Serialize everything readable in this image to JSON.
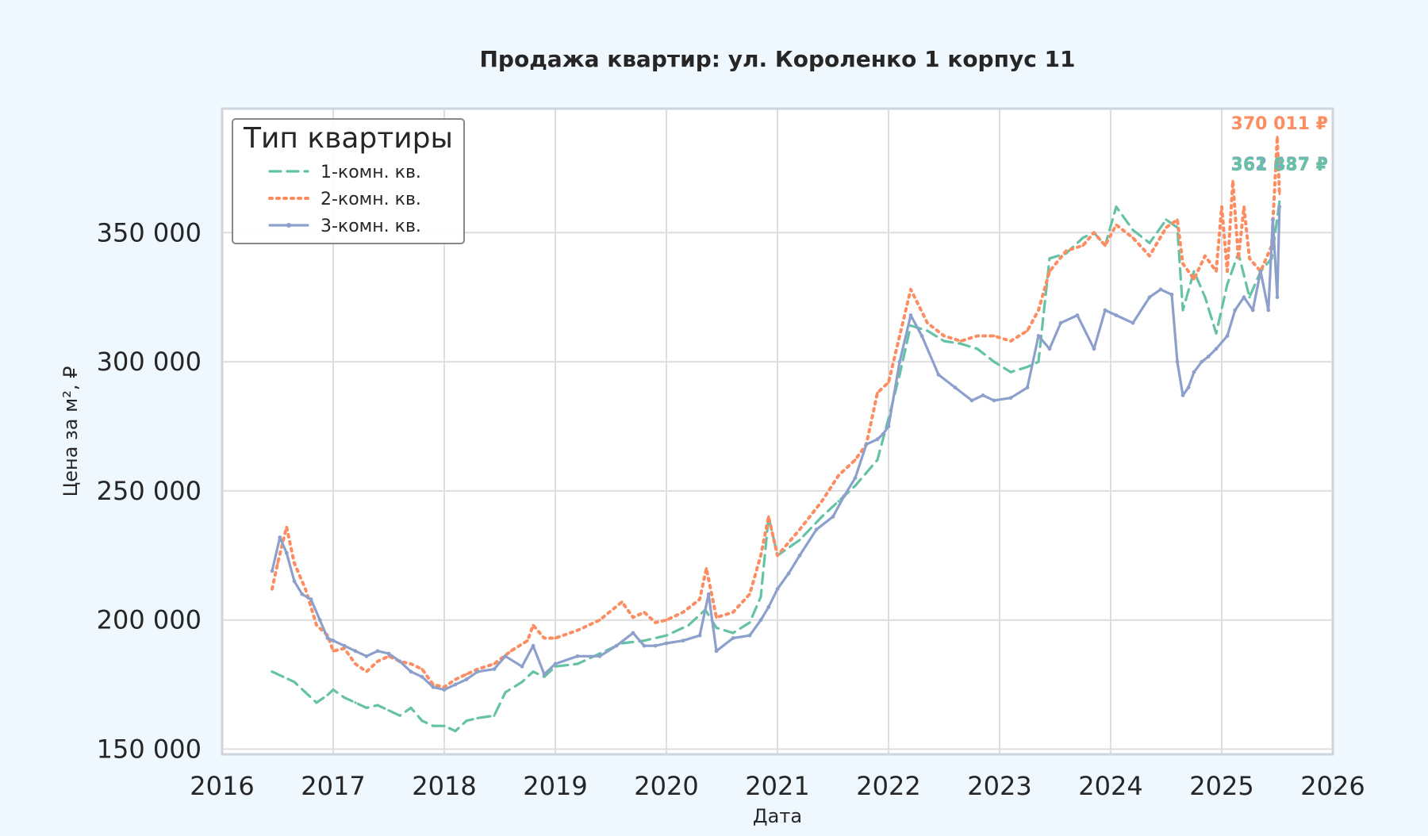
{
  "chart_data": {
    "type": "line",
    "title": "Продажа квартир: ул. Короленко 1 корпус 11",
    "xlabel": "Дата",
    "ylabel": "Цена за м², ₽",
    "xlim": [
      2016.0,
      2026.0
    ],
    "ylim": [
      148000,
      398000
    ],
    "x_ticks": [
      "2016",
      "2017",
      "2018",
      "2019",
      "2020",
      "2021",
      "2022",
      "2023",
      "2024",
      "2025",
      "2026"
    ],
    "y_ticks": [
      "150 000",
      "200 000",
      "250 000",
      "300 000",
      "350 000"
    ],
    "grid": true,
    "legend": {
      "title": "Тип квартиры",
      "position": "top-left"
    },
    "series": [
      {
        "name": "1-комн. кв.",
        "color": "#66c2a5",
        "style": "dashed",
        "x": [
          2016.45,
          2016.55,
          2016.65,
          2016.75,
          2016.85,
          2016.95,
          2017.0,
          2017.1,
          2017.2,
          2017.3,
          2017.4,
          2017.5,
          2017.6,
          2017.7,
          2017.8,
          2017.9,
          2018.0,
          2018.1,
          2018.2,
          2018.3,
          2018.45,
          2018.55,
          2018.7,
          2018.8,
          2018.9,
          2019.0,
          2019.2,
          2019.4,
          2019.6,
          2019.8,
          2020.0,
          2020.2,
          2020.35,
          2020.45,
          2020.6,
          2020.75,
          2020.85,
          2020.92,
          2021.0,
          2021.2,
          2021.4,
          2021.55,
          2021.7,
          2021.8,
          2021.9,
          2022.0,
          2022.1,
          2022.2,
          2022.35,
          2022.5,
          2022.65,
          2022.8,
          2022.95,
          2023.1,
          2023.25,
          2023.35,
          2023.45,
          2023.6,
          2023.75,
          2023.85,
          2023.95,
          2024.05,
          2024.2,
          2024.35,
          2024.5,
          2024.6,
          2024.65,
          2024.75,
          2024.85,
          2024.95,
          2025.05,
          2025.15,
          2025.25,
          2025.35,
          2025.45,
          2025.52
        ],
        "values": [
          180000,
          178000,
          176000,
          172000,
          168000,
          171000,
          173000,
          170000,
          168000,
          166000,
          167000,
          165000,
          163000,
          166000,
          161000,
          159000,
          159000,
          157000,
          161000,
          162000,
          163000,
          172000,
          176000,
          180000,
          178000,
          182000,
          183000,
          187000,
          191000,
          192000,
          194000,
          198000,
          204000,
          197000,
          195000,
          199000,
          209000,
          240000,
          225000,
          231000,
          240000,
          246000,
          252000,
          257000,
          262000,
          278000,
          295000,
          314000,
          312000,
          308000,
          307000,
          305000,
          300000,
          296000,
          298000,
          300000,
          340000,
          342000,
          348000,
          350000,
          345000,
          360000,
          351000,
          346000,
          355000,
          352000,
          320000,
          335000,
          325000,
          311000,
          330000,
          342000,
          325000,
          335000,
          340000,
          362000
        ]
      },
      {
        "name": "2-комн. кв.",
        "color": "#fc8d62",
        "style": "dotted",
        "x": [
          2016.45,
          2016.5,
          2016.58,
          2016.65,
          2016.75,
          2016.85,
          2016.95,
          2017.0,
          2017.1,
          2017.2,
          2017.3,
          2017.4,
          2017.5,
          2017.6,
          2017.7,
          2017.8,
          2017.9,
          2018.0,
          2018.1,
          2018.2,
          2018.3,
          2018.45,
          2018.6,
          2018.75,
          2018.8,
          2018.9,
          2019.0,
          2019.2,
          2019.4,
          2019.6,
          2019.7,
          2019.8,
          2019.9,
          2020.0,
          2020.15,
          2020.3,
          2020.36,
          2020.45,
          2020.6,
          2020.75,
          2020.85,
          2020.92,
          2021.0,
          2021.2,
          2021.4,
          2021.55,
          2021.7,
          2021.8,
          2021.9,
          2022.0,
          2022.1,
          2022.2,
          2022.35,
          2022.5,
          2022.65,
          2022.8,
          2022.95,
          2023.1,
          2023.25,
          2023.35,
          2023.45,
          2023.6,
          2023.75,
          2023.85,
          2023.95,
          2024.05,
          2024.2,
          2024.35,
          2024.5,
          2024.6,
          2024.65,
          2024.75,
          2024.85,
          2024.95,
          2025.0,
          2025.05,
          2025.1,
          2025.15,
          2025.2,
          2025.25,
          2025.35,
          2025.45,
          2025.5,
          2025.52
        ],
        "values": [
          212000,
          222000,
          236000,
          222000,
          212000,
          198000,
          194000,
          188000,
          189000,
          183000,
          180000,
          184000,
          186000,
          184000,
          183000,
          181000,
          175000,
          174000,
          177000,
          179000,
          181000,
          183000,
          188000,
          192000,
          198000,
          193000,
          193000,
          196000,
          200000,
          207000,
          201000,
          203000,
          199000,
          200000,
          203000,
          208000,
          220000,
          201000,
          203000,
          210000,
          225000,
          240000,
          225000,
          235000,
          246000,
          256000,
          262000,
          268000,
          288000,
          292000,
          310000,
          328000,
          315000,
          310000,
          308000,
          310000,
          310000,
          308000,
          312000,
          320000,
          335000,
          343000,
          345000,
          350000,
          345000,
          353000,
          348000,
          341000,
          352000,
          355000,
          338000,
          332000,
          341000,
          335000,
          360000,
          335000,
          370000,
          340000,
          360000,
          340000,
          335000,
          345000,
          387000,
          365000
        ]
      },
      {
        "name": "3-комн. кв.",
        "color": "#8da0cb",
        "style": "solid-markers",
        "x": [
          2016.45,
          2016.52,
          2016.58,
          2016.65,
          2016.72,
          2016.8,
          2016.88,
          2016.95,
          2017.0,
          2017.1,
          2017.2,
          2017.3,
          2017.4,
          2017.5,
          2017.6,
          2017.7,
          2017.8,
          2017.9,
          2018.0,
          2018.1,
          2018.2,
          2018.3,
          2018.45,
          2018.55,
          2018.7,
          2018.8,
          2018.9,
          2019.0,
          2019.2,
          2019.4,
          2019.55,
          2019.7,
          2019.8,
          2019.9,
          2020.0,
          2020.15,
          2020.3,
          2020.38,
          2020.45,
          2020.6,
          2020.75,
          2020.85,
          2020.92,
          2021.0,
          2021.1,
          2021.2,
          2021.35,
          2021.5,
          2021.6,
          2021.7,
          2021.8,
          2021.9,
          2021.95,
          2022.0,
          2022.1,
          2022.2,
          2022.3,
          2022.45,
          2022.6,
          2022.75,
          2022.85,
          2022.95,
          2023.1,
          2023.25,
          2023.35,
          2023.45,
          2023.55,
          2023.7,
          2023.85,
          2023.95,
          2024.05,
          2024.2,
          2024.35,
          2024.45,
          2024.55,
          2024.6,
          2024.65,
          2024.7,
          2024.75,
          2024.82,
          2024.88,
          2024.95,
          2025.05,
          2025.12,
          2025.2,
          2025.28,
          2025.35,
          2025.42,
          2025.46,
          2025.5,
          2025.52
        ],
        "values": [
          219000,
          232000,
          226000,
          215000,
          210000,
          208000,
          200000,
          193000,
          192000,
          190000,
          188000,
          186000,
          188000,
          187000,
          184000,
          180000,
          178000,
          174000,
          173000,
          175000,
          177000,
          180000,
          181000,
          186000,
          182000,
          190000,
          179000,
          183000,
          186000,
          186000,
          190000,
          195000,
          190000,
          190000,
          191000,
          192000,
          194000,
          210000,
          188000,
          193000,
          194000,
          200000,
          205000,
          212000,
          218000,
          225000,
          235000,
          240000,
          248000,
          255000,
          268000,
          270000,
          272000,
          275000,
          300000,
          318000,
          310000,
          295000,
          290000,
          285000,
          287000,
          285000,
          286000,
          290000,
          310000,
          305000,
          315000,
          318000,
          305000,
          320000,
          318000,
          315000,
          325000,
          328000,
          326000,
          300000,
          287000,
          290000,
          296000,
          300000,
          302000,
          305000,
          310000,
          320000,
          325000,
          320000,
          335000,
          320000,
          355000,
          325000,
          360000
        ]
      }
    ],
    "annotations": [
      {
        "text": "370 011 ₽",
        "color": "#fc8d62",
        "y": 370011
      },
      {
        "text": "362 437 ₽",
        "color": "#8da0cb",
        "y": 362437
      },
      {
        "text": "361 887 ₽",
        "color": "#66c2a5",
        "y": 361887
      }
    ]
  }
}
